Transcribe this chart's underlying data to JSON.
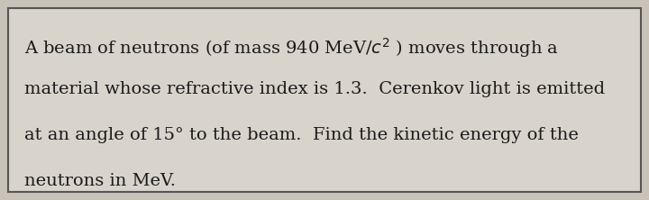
{
  "background_color": "#c8c2b8",
  "box_facecolor": "#d8d3cb",
  "box_edge_color": "#555555",
  "text_color": "#1a1a1a",
  "line1": "A beam of neutrons (of mass 940 MeV/$c^{2}$ ) moves through a",
  "line2": "material whose refractive index is 1.3.  Cerenkov light is emitted",
  "line3": "at an angle of 15° to the beam.  Find the kinetic energy of the",
  "line4": "neutrons in MeV.",
  "font_size": 14.0,
  "font_family": "serif",
  "fig_width": 7.2,
  "fig_height": 2.22,
  "dpi": 100
}
